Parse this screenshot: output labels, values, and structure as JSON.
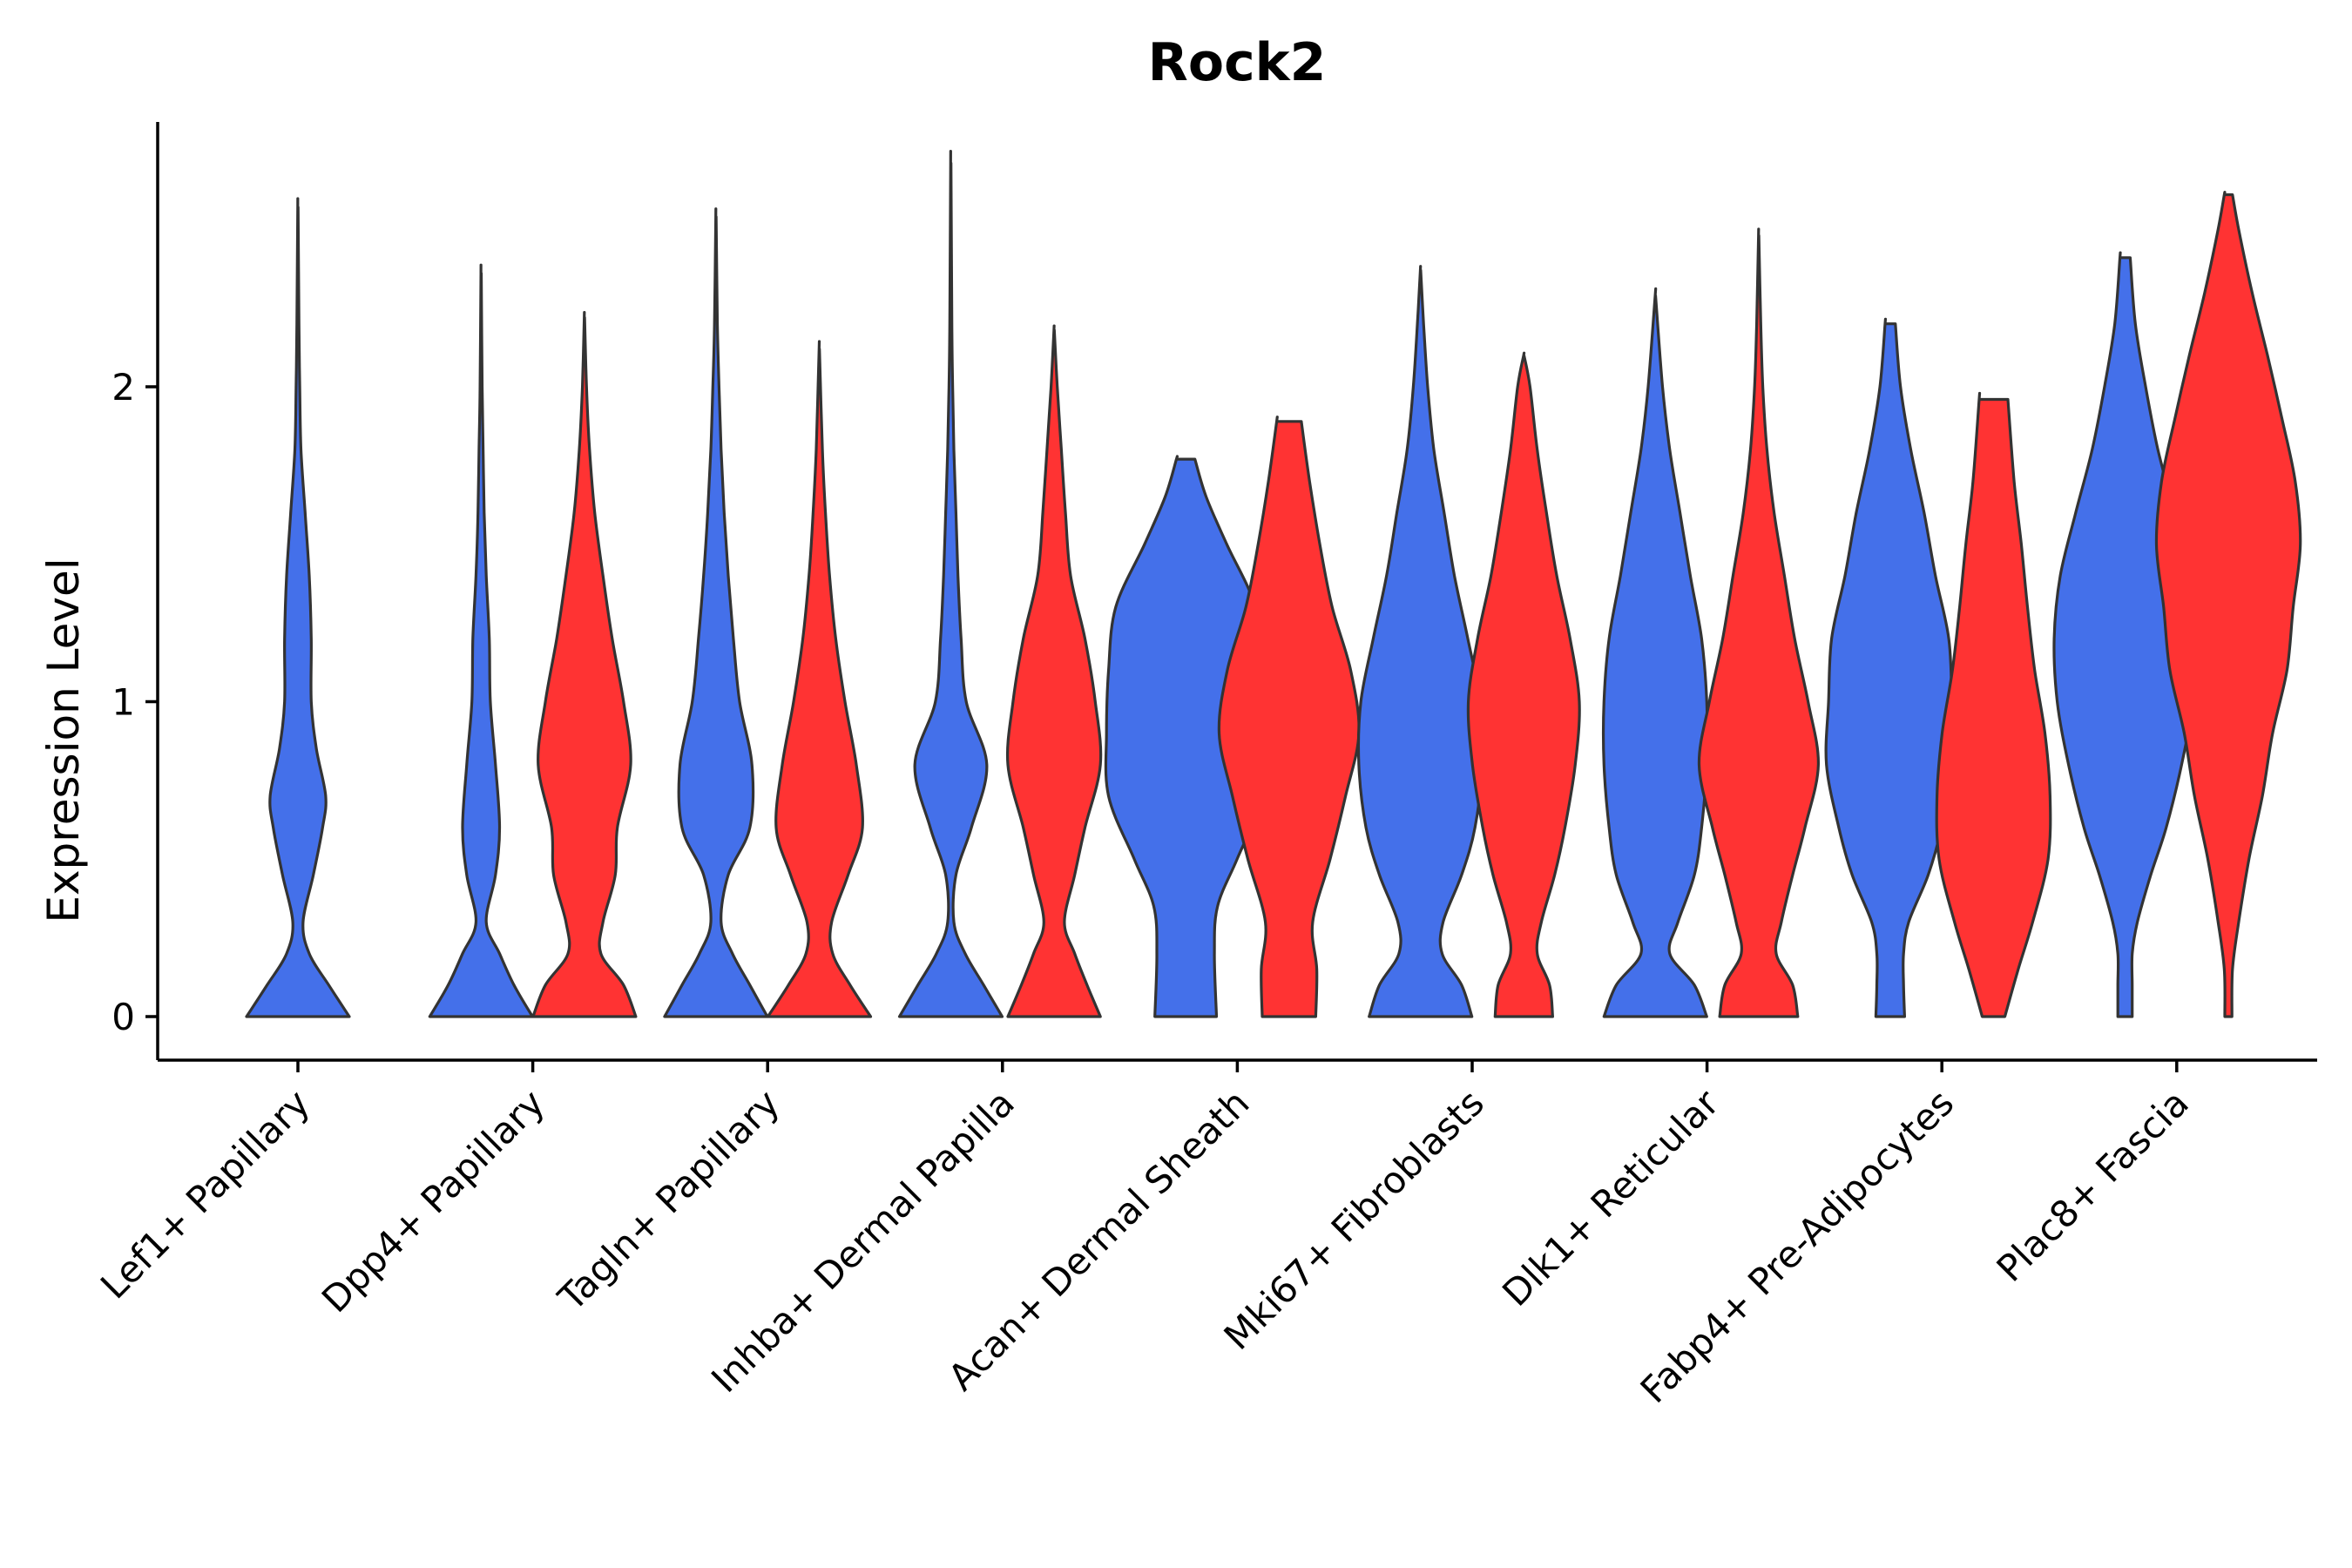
{
  "chart_data": {
    "type": "violin",
    "title": "Rock2",
    "xlabel": "",
    "ylabel": "Expression Level",
    "ylim": [
      -0.14,
      2.85
    ],
    "yticks": [
      0,
      1,
      2
    ],
    "grid": false,
    "legend": "none",
    "colors": {
      "group1": "#4470EA",
      "group2": "#FF3333",
      "outline": "#333333"
    },
    "categories": [
      "Lef1+ Papillary",
      "Dpp4+ Papillary",
      "Tagln+ Papillary",
      "Inhba+ Dermal Papilla",
      "Acan+ Dermal Sheath",
      "Mki67+ Fibroblasts",
      "Dlk1+ Reticular",
      "Fabp4+ Pre-Adipocytes",
      "Plac8+ Fascia"
    ],
    "violins": [
      {
        "category": 0,
        "group": "group1",
        "max": 2.57,
        "profile": [
          [
            0,
            0.5
          ],
          [
            0.1,
            0.3
          ],
          [
            0.2,
            0.11
          ],
          [
            0.3,
            0.05
          ],
          [
            0.45,
            0.15
          ],
          [
            0.6,
            0.24
          ],
          [
            0.7,
            0.27
          ],
          [
            0.85,
            0.18
          ],
          [
            1.0,
            0.13
          ],
          [
            1.2,
            0.13
          ],
          [
            1.4,
            0.11
          ],
          [
            1.6,
            0.07
          ],
          [
            1.8,
            0.03
          ],
          [
            2.0,
            0.018
          ],
          [
            2.2,
            0.01
          ],
          [
            2.57,
            0.002
          ]
        ]
      },
      {
        "category": 0.78,
        "group": "group1",
        "max": 2.36,
        "profile": [
          [
            0,
            0.5
          ],
          [
            0.1,
            0.32
          ],
          [
            0.2,
            0.18
          ],
          [
            0.3,
            0.05
          ],
          [
            0.45,
            0.14
          ],
          [
            0.6,
            0.18
          ],
          [
            0.8,
            0.14
          ],
          [
            1.0,
            0.09
          ],
          [
            1.2,
            0.08
          ],
          [
            1.4,
            0.05
          ],
          [
            1.6,
            0.03
          ],
          [
            1.8,
            0.02
          ],
          [
            2.0,
            0.01
          ],
          [
            2.36,
            0.002
          ]
        ]
      },
      {
        "category": 1.22,
        "group": "group2",
        "max": 2.22,
        "profile": [
          [
            0,
            0.5
          ],
          [
            0.1,
            0.38
          ],
          [
            0.2,
            0.16
          ],
          [
            0.3,
            0.18
          ],
          [
            0.45,
            0.3
          ],
          [
            0.6,
            0.32
          ],
          [
            0.8,
            0.45
          ],
          [
            1.0,
            0.38
          ],
          [
            1.2,
            0.27
          ],
          [
            1.4,
            0.18
          ],
          [
            1.6,
            0.1
          ],
          [
            1.8,
            0.05
          ],
          [
            2.0,
            0.02
          ],
          [
            2.22,
            0.002
          ]
        ]
      },
      {
        "category": 1.78,
        "group": "group1",
        "max": 2.54,
        "profile": [
          [
            0,
            0.5
          ],
          [
            0.1,
            0.33
          ],
          [
            0.2,
            0.16
          ],
          [
            0.3,
            0.05
          ],
          [
            0.45,
            0.12
          ],
          [
            0.6,
            0.33
          ],
          [
            0.8,
            0.35
          ],
          [
            1.0,
            0.23
          ],
          [
            1.2,
            0.17
          ],
          [
            1.4,
            0.12
          ],
          [
            1.6,
            0.08
          ],
          [
            1.8,
            0.05
          ],
          [
            2.0,
            0.03
          ],
          [
            2.2,
            0.014
          ],
          [
            2.54,
            0.002
          ]
        ]
      },
      {
        "category": 2.22,
        "group": "group2",
        "max": 2.12,
        "profile": [
          [
            0,
            0.5
          ],
          [
            0.1,
            0.3
          ],
          [
            0.2,
            0.13
          ],
          [
            0.3,
            0.12
          ],
          [
            0.45,
            0.28
          ],
          [
            0.6,
            0.42
          ],
          [
            0.8,
            0.36
          ],
          [
            1.0,
            0.25
          ],
          [
            1.2,
            0.16
          ],
          [
            1.4,
            0.1
          ],
          [
            1.6,
            0.06
          ],
          [
            1.8,
            0.03
          ],
          [
            2.12,
            0.002
          ]
        ]
      },
      {
        "category": 2.78,
        "group": "group1",
        "max": 2.71,
        "profile": [
          [
            0,
            0.5
          ],
          [
            0.1,
            0.32
          ],
          [
            0.2,
            0.14
          ],
          [
            0.3,
            0.03
          ],
          [
            0.45,
            0.05
          ],
          [
            0.6,
            0.2
          ],
          [
            0.8,
            0.35
          ],
          [
            1.0,
            0.15
          ],
          [
            1.2,
            0.1
          ],
          [
            1.4,
            0.07
          ],
          [
            1.6,
            0.05
          ],
          [
            1.8,
            0.03
          ],
          [
            2.0,
            0.018
          ],
          [
            2.2,
            0.01
          ],
          [
            2.71,
            0.002
          ]
        ]
      },
      {
        "category": 3.22,
        "group": "group2",
        "max": 2.18,
        "profile": [
          [
            0,
            0.45
          ],
          [
            0.1,
            0.32
          ],
          [
            0.2,
            0.2
          ],
          [
            0.3,
            0.1
          ],
          [
            0.45,
            0.2
          ],
          [
            0.6,
            0.3
          ],
          [
            0.8,
            0.45
          ],
          [
            1.0,
            0.4
          ],
          [
            1.2,
            0.3
          ],
          [
            1.4,
            0.16
          ],
          [
            1.6,
            0.11
          ],
          [
            1.8,
            0.07
          ],
          [
            2.0,
            0.03
          ],
          [
            2.18,
            0.002
          ]
        ]
      },
      {
        "category": 3.78,
        "group": "group1",
        "max": 1.77,
        "profile": [
          [
            0,
            0.3
          ],
          [
            0.2,
            0.28
          ],
          [
            0.35,
            0.31
          ],
          [
            0.5,
            0.5
          ],
          [
            0.7,
            0.75
          ],
          [
            0.9,
            0.77
          ],
          [
            1.1,
            0.75
          ],
          [
            1.3,
            0.68
          ],
          [
            1.5,
            0.4
          ],
          [
            1.65,
            0.2
          ],
          [
            1.77,
            0.09
          ]
        ]
      },
      {
        "category": 4.22,
        "group": "group2",
        "max": 1.89,
        "profile": [
          [
            0,
            0.26
          ],
          [
            0.15,
            0.27
          ],
          [
            0.3,
            0.23
          ],
          [
            0.5,
            0.4
          ],
          [
            0.7,
            0.55
          ],
          [
            0.9,
            0.68
          ],
          [
            1.1,
            0.6
          ],
          [
            1.3,
            0.42
          ],
          [
            1.5,
            0.3
          ],
          [
            1.7,
            0.2
          ],
          [
            1.89,
            0.12
          ]
        ]
      },
      {
        "category": 4.78,
        "group": "group1",
        "max": 2.37,
        "profile": [
          [
            0,
            0.5
          ],
          [
            0.1,
            0.4
          ],
          [
            0.2,
            0.21
          ],
          [
            0.3,
            0.22
          ],
          [
            0.45,
            0.4
          ],
          [
            0.6,
            0.53
          ],
          [
            0.8,
            0.6
          ],
          [
            1.0,
            0.58
          ],
          [
            1.2,
            0.46
          ],
          [
            1.4,
            0.33
          ],
          [
            1.6,
            0.23
          ],
          [
            1.8,
            0.13
          ],
          [
            2.0,
            0.07
          ],
          [
            2.2,
            0.03
          ],
          [
            2.37,
            0.002
          ]
        ]
      },
      {
        "category": 5.22,
        "group": "group2",
        "max": 2.1,
        "profile": [
          [
            0,
            0.28
          ],
          [
            0.1,
            0.25
          ],
          [
            0.2,
            0.13
          ],
          [
            0.3,
            0.17
          ],
          [
            0.45,
            0.3
          ],
          [
            0.6,
            0.4
          ],
          [
            0.8,
            0.5
          ],
          [
            1.0,
            0.54
          ],
          [
            1.2,
            0.45
          ],
          [
            1.4,
            0.32
          ],
          [
            1.6,
            0.22
          ],
          [
            1.8,
            0.13
          ],
          [
            2.0,
            0.06
          ],
          [
            2.1,
            0.002
          ]
        ]
      },
      {
        "category": 5.78,
        "group": "group1",
        "max": 2.29,
        "profile": [
          [
            0,
            0.5
          ],
          [
            0.1,
            0.38
          ],
          [
            0.2,
            0.14
          ],
          [
            0.3,
            0.22
          ],
          [
            0.45,
            0.38
          ],
          [
            0.6,
            0.45
          ],
          [
            0.8,
            0.5
          ],
          [
            1.0,
            0.5
          ],
          [
            1.2,
            0.45
          ],
          [
            1.4,
            0.34
          ],
          [
            1.6,
            0.24
          ],
          [
            1.8,
            0.14
          ],
          [
            2.0,
            0.07
          ],
          [
            2.29,
            0.002
          ]
        ]
      },
      {
        "category": 6.22,
        "group": "group2",
        "max": 2.48,
        "profile": [
          [
            0,
            0.38
          ],
          [
            0.1,
            0.33
          ],
          [
            0.2,
            0.17
          ],
          [
            0.3,
            0.22
          ],
          [
            0.45,
            0.33
          ],
          [
            0.6,
            0.45
          ],
          [
            0.8,
            0.58
          ],
          [
            1.0,
            0.48
          ],
          [
            1.2,
            0.35
          ],
          [
            1.4,
            0.25
          ],
          [
            1.6,
            0.15
          ],
          [
            1.8,
            0.08
          ],
          [
            2.0,
            0.04
          ],
          [
            2.2,
            0.02
          ],
          [
            2.48,
            0.002
          ]
        ]
      },
      {
        "category": 6.78,
        "group": "group1",
        "max": 2.2,
        "profile": [
          [
            0,
            0.14
          ],
          [
            0.1,
            0.13
          ],
          [
            0.2,
            0.13
          ],
          [
            0.3,
            0.18
          ],
          [
            0.45,
            0.37
          ],
          [
            0.6,
            0.5
          ],
          [
            0.8,
            0.62
          ],
          [
            1.0,
            0.6
          ],
          [
            1.2,
            0.57
          ],
          [
            1.4,
            0.44
          ],
          [
            1.6,
            0.33
          ],
          [
            1.8,
            0.2
          ],
          [
            2.0,
            0.1
          ],
          [
            2.2,
            0.05
          ]
        ]
      },
      {
        "category": 7.22,
        "group": "group2",
        "max": 1.96,
        "profile": [
          [
            0,
            0.11
          ],
          [
            0.15,
            0.24
          ],
          [
            0.3,
            0.38
          ],
          [
            0.5,
            0.53
          ],
          [
            0.7,
            0.55
          ],
          [
            0.9,
            0.5
          ],
          [
            1.1,
            0.4
          ],
          [
            1.3,
            0.33
          ],
          [
            1.5,
            0.27
          ],
          [
            1.7,
            0.2
          ],
          [
            1.96,
            0.14
          ]
        ]
      },
      {
        "category": 7.78,
        "group": "group1",
        "max": 2.41,
        "profile": [
          [
            0,
            0.07
          ],
          [
            0.1,
            0.07
          ],
          [
            0.2,
            0.07
          ],
          [
            0.3,
            0.12
          ],
          [
            0.45,
            0.25
          ],
          [
            0.6,
            0.4
          ],
          [
            0.8,
            0.55
          ],
          [
            1.0,
            0.66
          ],
          [
            1.2,
            0.69
          ],
          [
            1.4,
            0.63
          ],
          [
            1.6,
            0.48
          ],
          [
            1.8,
            0.32
          ],
          [
            2.0,
            0.2
          ],
          [
            2.2,
            0.1
          ],
          [
            2.41,
            0.05
          ]
        ]
      },
      {
        "category": 8.22,
        "group": "group2",
        "max": 2.61,
        "profile": [
          [
            0,
            0.035
          ],
          [
            0.15,
            0.04
          ],
          [
            0.3,
            0.1
          ],
          [
            0.5,
            0.2
          ],
          [
            0.7,
            0.33
          ],
          [
            0.9,
            0.43
          ],
          [
            1.1,
            0.57
          ],
          [
            1.3,
            0.63
          ],
          [
            1.5,
            0.7
          ],
          [
            1.7,
            0.65
          ],
          [
            1.9,
            0.52
          ],
          [
            2.1,
            0.38
          ],
          [
            2.3,
            0.23
          ],
          [
            2.5,
            0.1
          ],
          [
            2.61,
            0.04
          ]
        ]
      }
    ]
  }
}
